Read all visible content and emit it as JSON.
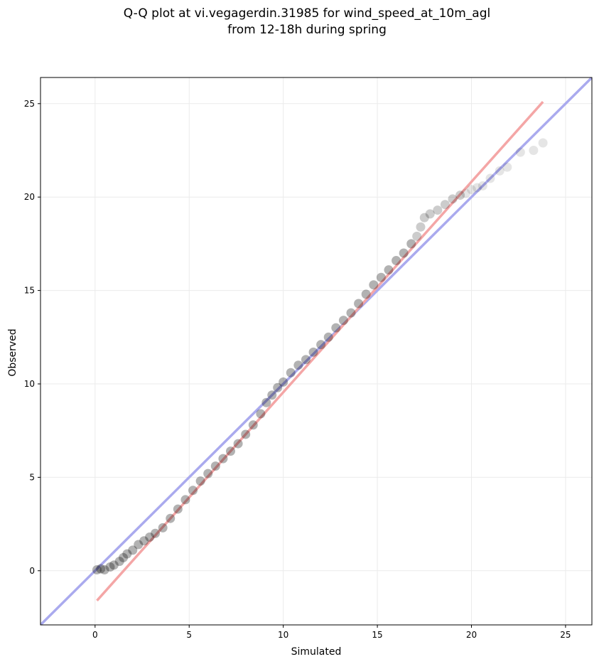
{
  "chart_data": {
    "type": "scatter",
    "title_line1": "Q-Q plot at vi.vegagerdin.31985 for wind_speed_at_10m_agl",
    "title_line2": "from 12-18h during spring",
    "xlabel": "Simulated",
    "ylabel": "Observed",
    "xlim": [
      -2.9,
      26.4
    ],
    "ylim": [
      -2.9,
      26.4
    ],
    "xticks": [
      0,
      5,
      10,
      15,
      20,
      25
    ],
    "yticks": [
      0,
      5,
      10,
      15,
      20,
      25
    ],
    "grid": true,
    "colors": {
      "points": "#000000",
      "identity_line": "#aaaaee",
      "fit_line": "#f4a6a6",
      "grid": "#ebebeb"
    },
    "identity_line": {
      "x": [
        -2.9,
        26.4
      ],
      "y": [
        -2.9,
        26.4
      ]
    },
    "fit_line": {
      "x": [
        0.1,
        23.8
      ],
      "y": [
        -1.6,
        25.1
      ]
    },
    "points": {
      "x": [
        0.1,
        0.3,
        0.5,
        0.8,
        1.0,
        1.3,
        1.5,
        1.7,
        2.0,
        2.3,
        2.6,
        2.9,
        3.2,
        3.6,
        4.0,
        4.4,
        4.8,
        5.2,
        5.6,
        6.0,
        6.4,
        6.8,
        7.2,
        7.6,
        8.0,
        8.4,
        8.8,
        9.1,
        9.4,
        9.7,
        10.0,
        10.4,
        10.8,
        11.2,
        11.6,
        12.0,
        12.4,
        12.8,
        13.2,
        13.6,
        14.0,
        14.4,
        14.8,
        15.2,
        15.6,
        16.0,
        16.4,
        16.8,
        17.1,
        17.3,
        17.5,
        17.8,
        18.2,
        18.6,
        19.0,
        19.4,
        19.7,
        20.0,
        20.3,
        20.6,
        21.0,
        21.5,
        21.9,
        22.6,
        23.3,
        23.8
      ],
      "y": [
        0.05,
        0.1,
        0.05,
        0.2,
        0.3,
        0.5,
        0.7,
        0.9,
        1.1,
        1.4,
        1.6,
        1.8,
        2.0,
        2.3,
        2.8,
        3.3,
        3.8,
        4.3,
        4.8,
        5.2,
        5.6,
        6.0,
        6.4,
        6.8,
        7.3,
        7.8,
        8.4,
        9.0,
        9.4,
        9.8,
        10.1,
        10.6,
        11.0,
        11.3,
        11.7,
        12.1,
        12.5,
        13.0,
        13.4,
        13.8,
        14.3,
        14.8,
        15.3,
        15.7,
        16.1,
        16.6,
        17.0,
        17.5,
        17.9,
        18.4,
        18.9,
        19.1,
        19.3,
        19.6,
        19.9,
        20.1,
        20.2,
        20.4,
        20.5,
        20.6,
        21.0,
        21.4,
        21.6,
        22.4,
        22.5,
        22.9
      ]
    }
  }
}
